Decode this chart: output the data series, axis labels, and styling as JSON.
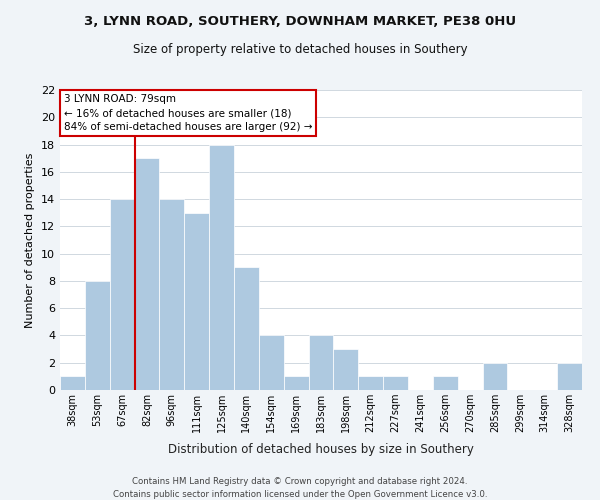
{
  "title1": "3, LYNN ROAD, SOUTHERY, DOWNHAM MARKET, PE38 0HU",
  "title2": "Size of property relative to detached houses in Southery",
  "xlabel": "Distribution of detached houses by size in Southery",
  "ylabel": "Number of detached properties",
  "footnote1": "Contains HM Land Registry data © Crown copyright and database right 2024.",
  "footnote2": "Contains public sector information licensed under the Open Government Licence v3.0.",
  "bin_labels": [
    "38sqm",
    "53sqm",
    "67sqm",
    "82sqm",
    "96sqm",
    "111sqm",
    "125sqm",
    "140sqm",
    "154sqm",
    "169sqm",
    "183sqm",
    "198sqm",
    "212sqm",
    "227sqm",
    "241sqm",
    "256sqm",
    "270sqm",
    "285sqm",
    "299sqm",
    "314sqm",
    "328sqm"
  ],
  "bar_heights": [
    1,
    8,
    14,
    17,
    14,
    13,
    18,
    9,
    4,
    1,
    4,
    3,
    1,
    1,
    0,
    1,
    0,
    2,
    0,
    0,
    2
  ],
  "bar_color": "#aec9e0",
  "vline_x_idx": 3,
  "vline_color": "#cc0000",
  "annotation_title": "3 LYNN ROAD: 79sqm",
  "annotation_line1": "← 16% of detached houses are smaller (18)",
  "annotation_line2": "84% of semi-detached houses are larger (92) →",
  "annotation_box_color": "#ffffff",
  "annotation_box_edge": "#cc0000",
  "ylim": [
    0,
    22
  ],
  "yticks": [
    0,
    2,
    4,
    6,
    8,
    10,
    12,
    14,
    16,
    18,
    20,
    22
  ],
  "background_color": "#f0f4f8",
  "plot_bg_color": "#ffffff",
  "grid_color": "#d0d8e0"
}
